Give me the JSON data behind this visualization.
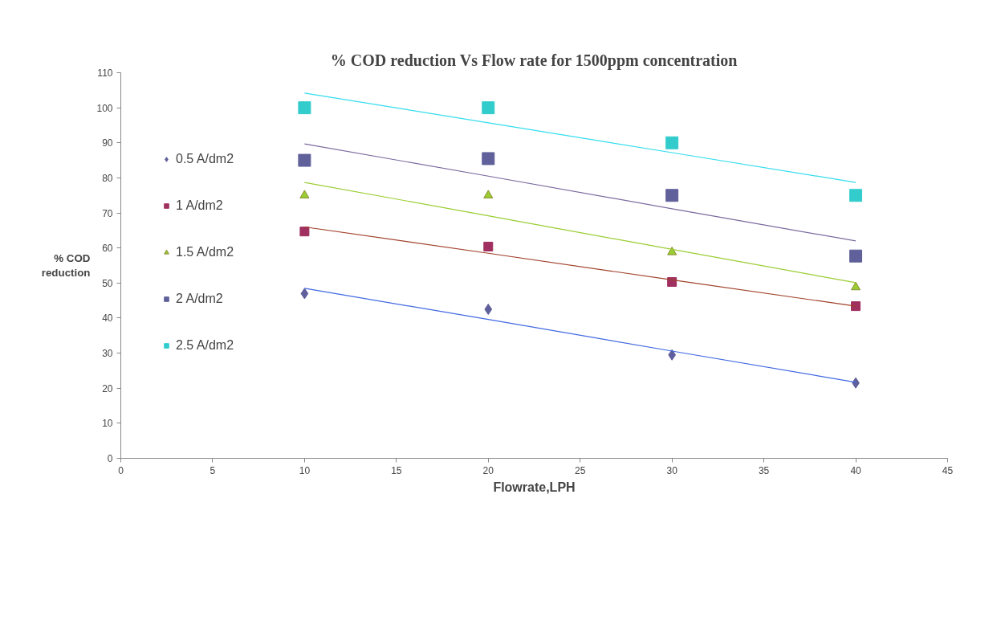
{
  "chart_data": {
    "type": "scatter",
    "title": "% COD reduction Vs Flow rate for 1500ppm concentration",
    "xlabel": "Flowrate,LPH",
    "ylabel": "% COD reduction",
    "x": [
      10,
      20,
      30,
      40
    ],
    "series": [
      {
        "name": "0.5 A/dm2",
        "color": "#5f5f9b",
        "marker": "diamond",
        "values": [
          47,
          42.5,
          29.5,
          21.5
        ]
      },
      {
        "name": "1 A/dm2",
        "color": "#a0305f",
        "marker": "square",
        "values": [
          64.7,
          60.4,
          50.3,
          43.4
        ]
      },
      {
        "name": "1.5 A/dm2",
        "color": "#9acd32",
        "marker": "triangle",
        "values": [
          75,
          75,
          58.8,
          48.8
        ]
      },
      {
        "name": "2 A/dm2",
        "color": "#60609a",
        "marker": "square",
        "values": [
          85,
          85.5,
          75,
          57.7
        ]
      },
      {
        "name": "2.5 A/dm2",
        "color": "#33cccc",
        "marker": "square",
        "values": [
          100,
          100,
          90,
          75
        ]
      },
      {
        "type": "line",
        "color": "#4169e1",
        "values": [
          48.5,
          39.6,
          30.6,
          21.7
        ]
      },
      {
        "type": "line",
        "color": "#a0402a",
        "values": [
          66.0,
          58.5,
          50.9,
          43.4
        ]
      },
      {
        "type": "line",
        "color": "#9acd32",
        "values": [
          78.7,
          69.2,
          59.6,
          50.1
        ]
      },
      {
        "type": "line",
        "color": "#7a6a9e",
        "values": [
          89.7,
          80.5,
          71.2,
          62.0
        ]
      },
      {
        "type": "line",
        "color": "#33ddee",
        "values": [
          104.2,
          95.7,
          87.2,
          78.7
        ]
      }
    ],
    "xlim": [
      0,
      45
    ],
    "xticks": [
      0,
      5,
      10,
      15,
      20,
      25,
      30,
      35,
      40,
      45
    ],
    "ylim": [
      0,
      110
    ],
    "yticks": [
      0,
      10,
      20,
      30,
      40,
      50,
      60,
      70,
      80,
      90,
      100,
      110
    ],
    "grid": false,
    "legend": "left"
  }
}
